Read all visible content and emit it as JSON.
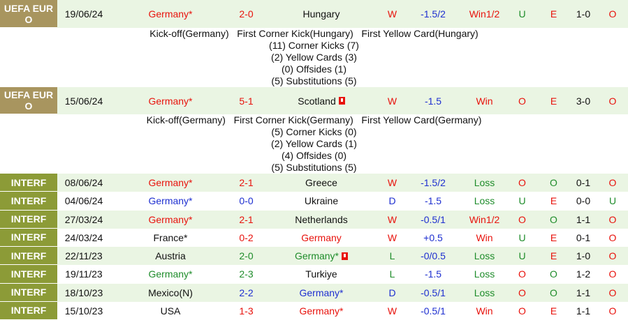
{
  "matches": [
    {
      "league": "UEFA EURO",
      "date": "19/06/24",
      "home": "Germany*",
      "score": "2-0",
      "away": "Hungary",
      "result": "W",
      "handicap": "-1.5/2",
      "handicap_result": "Win1/2",
      "over_under": "U",
      "odd_even": "E",
      "half_time": "1-0",
      "half_time_over_under": "O",
      "details": [
        "Kick-off(Germany)   First Corner Kick(Hungary)   First Yellow Card(Hungary)",
        "(11) Corner Kicks (7)",
        "(2) Yellow Cards (3)",
        "(0) Offsides (1)",
        "(5) Substitutions (5)"
      ]
    },
    {
      "league": "UEFA EURO",
      "date": "15/06/24",
      "home": "Germany*",
      "score": "5-1",
      "away": "Scotland",
      "result": "W",
      "handicap": "-1.5",
      "handicap_result": "Win",
      "over_under": "O",
      "odd_even": "E",
      "half_time": "3-0",
      "half_time_over_under": "O",
      "details": [
        "Kick-off(Germany)   First Corner Kick(Germany)   First Yellow Card(Germany)",
        "(5) Corner Kicks (0)",
        "(2) Yellow Cards (1)",
        "(4) Offsides (0)",
        "(5) Substitutions (5)"
      ]
    },
    {
      "league": "INTERF",
      "date": "08/06/24",
      "home": "Germany*",
      "score": "2-1",
      "away": "Greece",
      "result": "W",
      "handicap": "-1.5/2",
      "handicap_result": "Loss",
      "over_under": "O",
      "odd_even": "O",
      "half_time": "0-1",
      "half_time_over_under": "O"
    },
    {
      "league": "INTERF",
      "date": "04/06/24",
      "home": "Germany*",
      "score": "0-0",
      "away": "Ukraine",
      "result": "D",
      "handicap": "-1.5",
      "handicap_result": "Loss",
      "over_under": "U",
      "odd_even": "E",
      "half_time": "0-0",
      "half_time_over_under": "U"
    },
    {
      "league": "INTERF",
      "date": "27/03/24",
      "home": "Germany*",
      "score": "2-1",
      "away": "Netherlands",
      "result": "W",
      "handicap": "-0.5/1",
      "handicap_result": "Win1/2",
      "over_under": "O",
      "odd_even": "O",
      "half_time": "1-1",
      "half_time_over_under": "O"
    },
    {
      "league": "INTERF",
      "date": "24/03/24",
      "home": "France*",
      "score": "0-2",
      "away": "Germany",
      "result": "W",
      "handicap": "+0.5",
      "handicap_result": "Win",
      "over_under": "U",
      "odd_even": "E",
      "half_time": "0-1",
      "half_time_over_under": "O"
    },
    {
      "league": "INTERF",
      "date": "22/11/23",
      "home": "Austria",
      "score": "2-0",
      "away": "Germany*",
      "result": "L",
      "handicap": "-0/0.5",
      "handicap_result": "Loss",
      "over_under": "U",
      "odd_even": "E",
      "half_time": "1-0",
      "half_time_over_under": "O"
    },
    {
      "league": "INTERF",
      "date": "19/11/23",
      "home": "Germany*",
      "score": "2-3",
      "away": "Turkiye",
      "result": "L",
      "handicap": "-1.5",
      "handicap_result": "Loss",
      "over_under": "O",
      "odd_even": "O",
      "half_time": "1-2",
      "half_time_over_under": "O"
    },
    {
      "league": "INTERF",
      "date": "18/10/23",
      "home": "Mexico(N)",
      "score": "2-2",
      "away": "Germany*",
      "result": "D",
      "handicap": "-0.5/1",
      "handicap_result": "Loss",
      "over_under": "O",
      "odd_even": "O",
      "half_time": "1-1",
      "half_time_over_under": "O"
    },
    {
      "league": "INTERF",
      "date": "15/10/23",
      "home": "USA",
      "score": "1-3",
      "away": "Germany*",
      "result": "W",
      "handicap": "-0.5/1",
      "handicap_result": "Win",
      "over_under": "O",
      "odd_even": "E",
      "half_time": "1-1",
      "half_time_over_under": "O"
    }
  ]
}
